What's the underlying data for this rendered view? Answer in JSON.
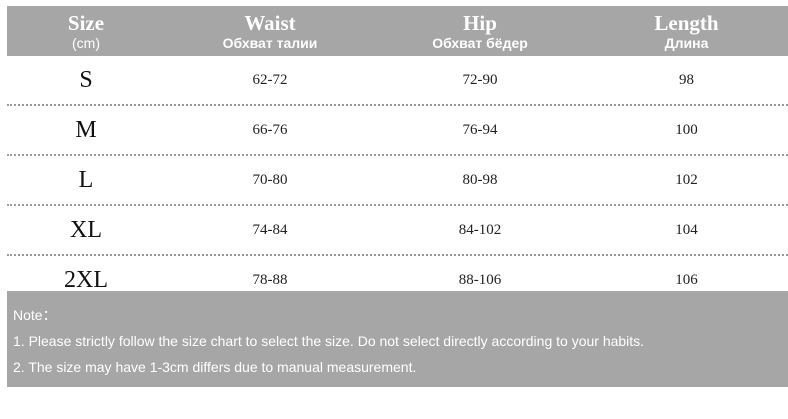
{
  "header": {
    "size": {
      "en": "Size",
      "sub": "(cm)"
    },
    "waist": {
      "en": "Waist",
      "sub": "Обхват талии"
    },
    "hip": {
      "en": "Hip",
      "sub": "Обхват бёдер"
    },
    "length": {
      "en": "Length",
      "sub": "Длина"
    }
  },
  "rows": [
    {
      "size": "S",
      "waist": "62-72",
      "hip": "72-90",
      "length": "98"
    },
    {
      "size": "M",
      "waist": "66-76",
      "hip": "76-94",
      "length": "100"
    },
    {
      "size": "L",
      "waist": "70-80",
      "hip": "80-98",
      "length": "102"
    },
    {
      "size": "XL",
      "waist": "74-84",
      "hip": "84-102",
      "length": "104"
    },
    {
      "size": "2XL",
      "waist": "78-88",
      "hip": "88-106",
      "length": "106"
    }
  ],
  "note": {
    "title": "Note：",
    "line1": "1. Please strictly follow the size chart to select the size. Do not select directly according to your habits.",
    "line2": "2. The size may have 1-3cm differs due to manual measurement."
  },
  "colors": {
    "header_bg": "#a6a6a6",
    "text": "#222222",
    "header_text": "#ffffff"
  }
}
